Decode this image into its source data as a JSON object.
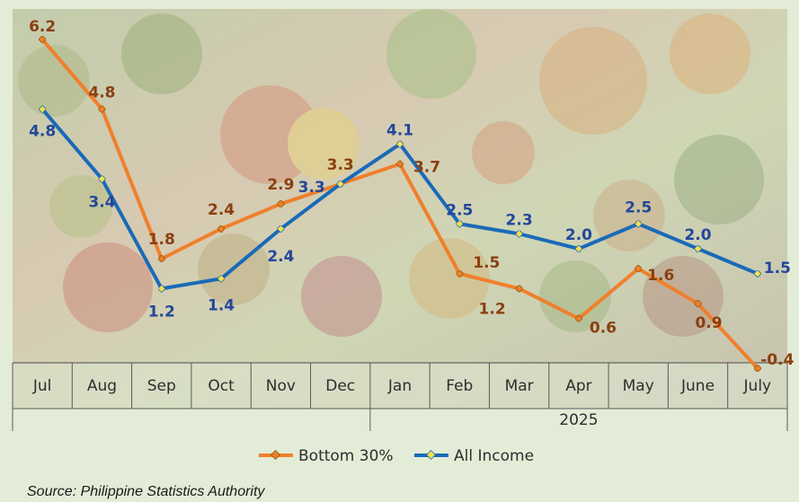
{
  "chart_data": {
    "type": "line",
    "categories": [
      "Jul",
      "Aug",
      "Sep",
      "Oct",
      "Nov",
      "Dec",
      "Jan",
      "Feb",
      "Mar",
      "Apr",
      "May",
      "June",
      "July"
    ],
    "year_group_label": "2025",
    "series": [
      {
        "name": "Bottom 30%",
        "color": "#f07f2c",
        "label_color": "#8a3f10",
        "values": [
          6.2,
          4.8,
          1.8,
          2.4,
          2.9,
          3.3,
          3.7,
          1.5,
          1.2,
          0.6,
          1.6,
          0.9,
          -0.4
        ]
      },
      {
        "name": "All Income",
        "color": "#1a6ab8",
        "label_color": "#23479a",
        "values": [
          4.8,
          3.4,
          1.2,
          1.4,
          2.4,
          3.3,
          4.1,
          2.5,
          2.3,
          2.0,
          2.5,
          2.0,
          1.5
        ]
      }
    ],
    "legend_position": "bottom-center",
    "grid": false
  },
  "source": "Source: Philippine Statistics Authority"
}
